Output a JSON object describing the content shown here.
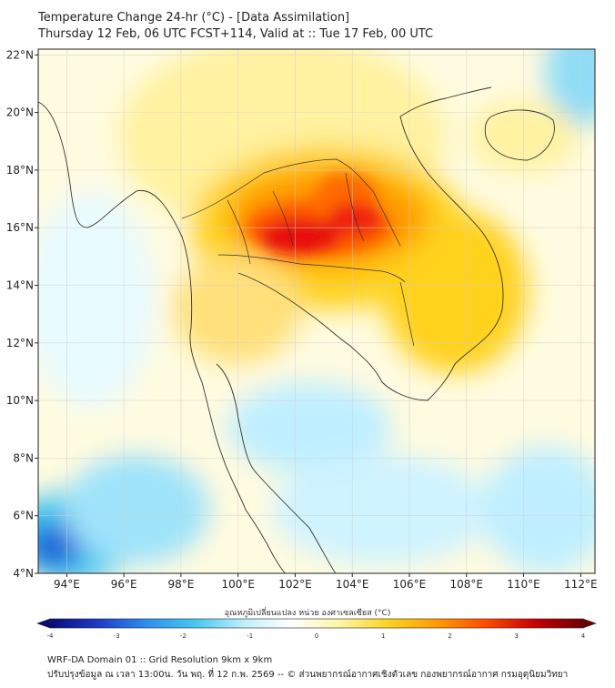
{
  "header": {
    "line1": "Temperature Change 24-hr (°C) - [Data Assimilation]",
    "line2": "Thursday 12 Feb, 06 UTC FCST+114, Valid at :: Tue 17 Feb, 00 UTC"
  },
  "map": {
    "lon_ticks": [
      "94°E",
      "96°E",
      "98°E",
      "100°E",
      "102°E",
      "104°E",
      "106°E",
      "108°E",
      "110°E",
      "112°E"
    ],
    "lat_ticks": [
      "22°N",
      "20°N",
      "18°N",
      "16°N",
      "14°N",
      "12°N",
      "10°N",
      "8°N",
      "6°N",
      "4°N"
    ],
    "lon_range": [
      93,
      112.5
    ],
    "lat_range": [
      4,
      22.2
    ],
    "colors": {
      "strong_warm": "#e81010",
      "warm": "#ff7a00",
      "mild_warm": "#ffc400",
      "slight_warm": "#fff08a",
      "neutral": "#ffffff",
      "slight_cool": "#bfefff",
      "cool": "#3ec5f0",
      "strong_cool": "#1a5fd6"
    }
  },
  "colorbar": {
    "title": "อุณหภูมิเปลี่ยนแปลง หน่วย องศาเซลเซียส (°C)",
    "ticks": [
      "-4",
      "-3",
      "-2",
      "-1",
      "0",
      "1",
      "2",
      "3",
      "4"
    ],
    "stops": [
      "#0a0a7a",
      "#1e3cc8",
      "#2f8ef0",
      "#46c8f2",
      "#bfefff",
      "#ffffff",
      "#fff5a0",
      "#ffd21e",
      "#ff9a00",
      "#ff4a00",
      "#c80000",
      "#6e0000"
    ]
  },
  "footer": {
    "line1": "WRF-DA Domain 01 :: Grid Resolution 9km x 9km",
    "line2": "ปรับปรุงข้อมูล ณ เวลา 13:00น. วัน พฤ. ที่ 12 ก.พ. 2569 -- © ส่วนพยากรณ์อากาศเชิงตัวเลข กองพยากรณ์อากาศ กรมอุตุนิยมวิทยา"
  }
}
